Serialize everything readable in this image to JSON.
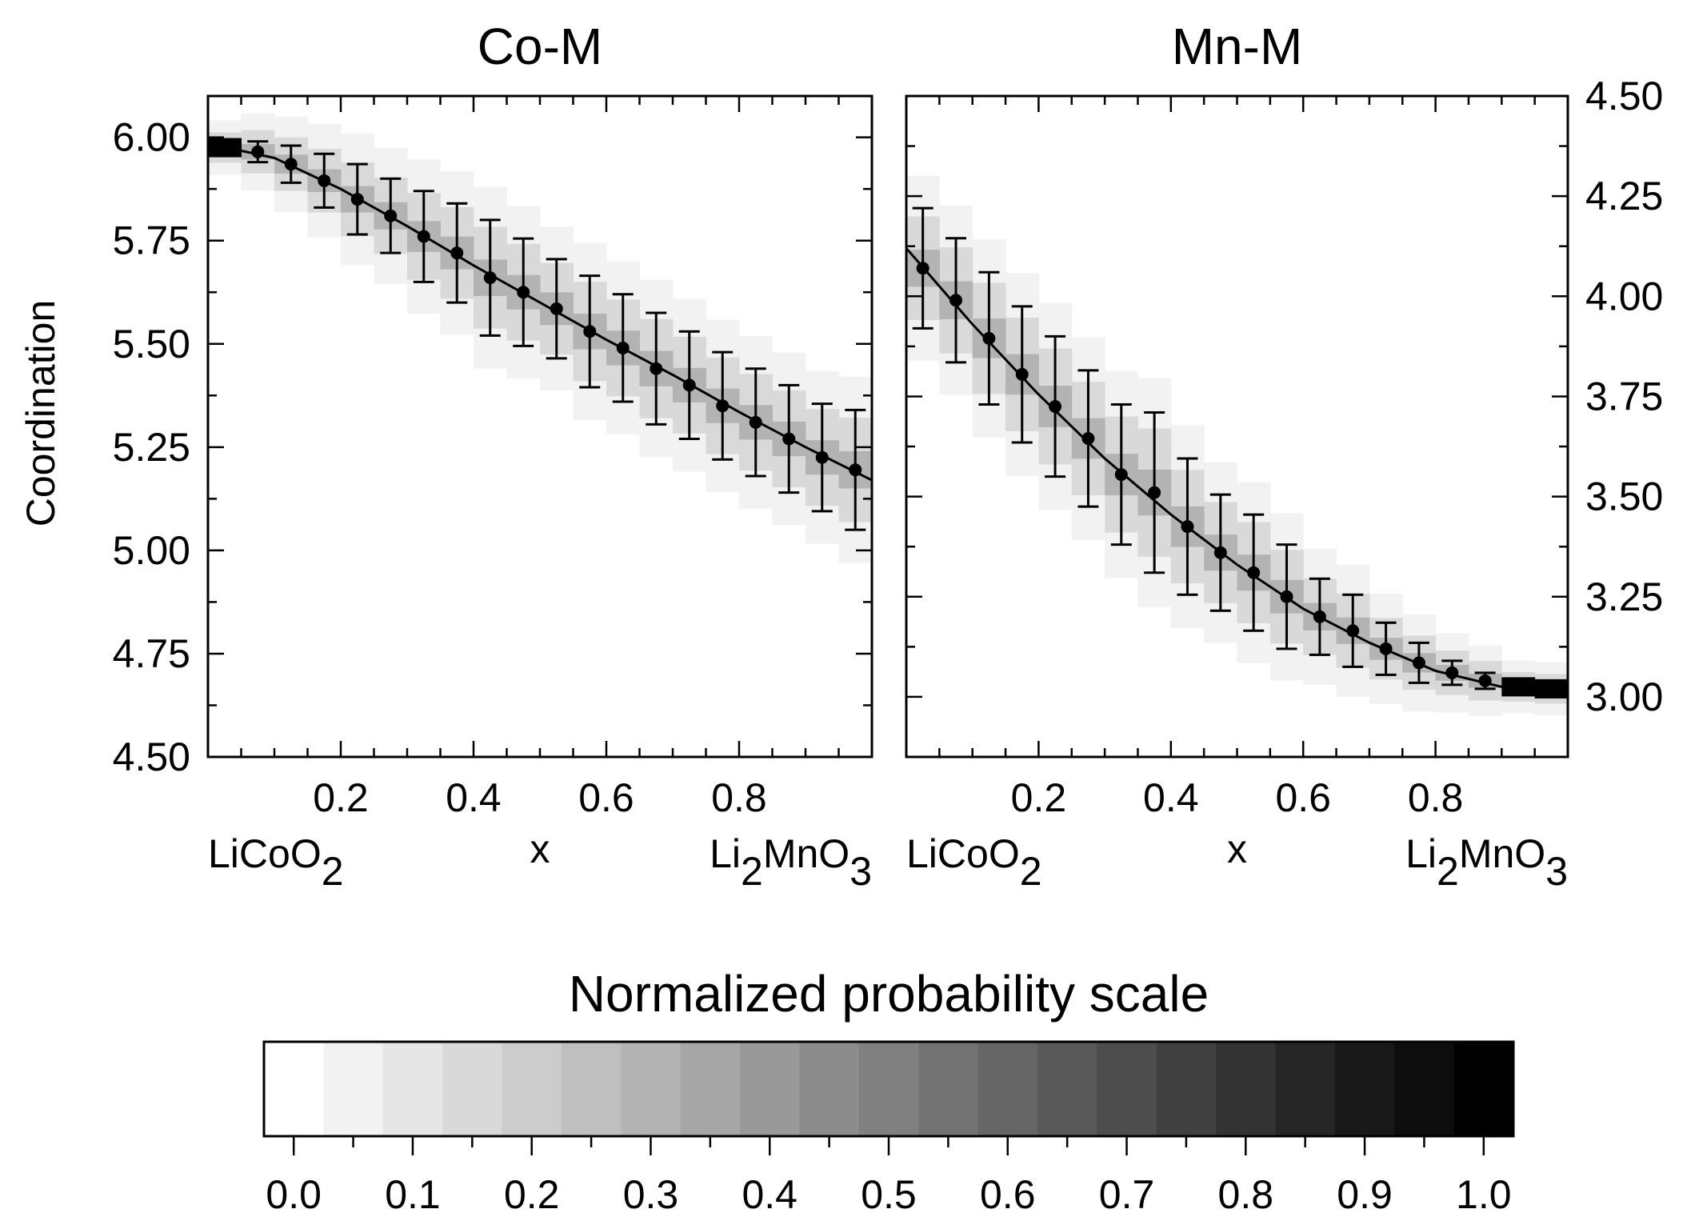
{
  "chart_data": [
    {
      "type": "scatter",
      "title": "Co-M",
      "ylabel": "Coordination",
      "xlim": [
        0,
        1
      ],
      "ylim": [
        4.5,
        6.1
      ],
      "x_ticks": [
        "0.2",
        "0.4",
        "0.6",
        "0.8"
      ],
      "x_tick_values": [
        0.2,
        0.4,
        0.6,
        0.8
      ],
      "x_end_labels": {
        "left": [
          "LiCoO",
          "2"
        ],
        "center": "x",
        "right": [
          "Li",
          "2",
          "MnO",
          "3"
        ]
      },
      "y_ticks": [
        "4.50",
        "4.75",
        "5.00",
        "5.25",
        "5.50",
        "5.75",
        "6.00"
      ],
      "y_tick_values": [
        4.5,
        4.75,
        5.0,
        5.25,
        5.5,
        5.75,
        6.0
      ],
      "y_axis_side": "left",
      "x": [
        0.025,
        0.075,
        0.125,
        0.175,
        0.225,
        0.275,
        0.325,
        0.375,
        0.425,
        0.475,
        0.525,
        0.575,
        0.625,
        0.675,
        0.725,
        0.775,
        0.825,
        0.875,
        0.925,
        0.975
      ],
      "y": [
        5.975,
        5.965,
        5.935,
        5.895,
        5.85,
        5.81,
        5.76,
        5.72,
        5.66,
        5.625,
        5.585,
        5.53,
        5.49,
        5.44,
        5.4,
        5.35,
        5.31,
        5.27,
        5.225,
        5.195
      ],
      "yerr": [
        0.0,
        0.025,
        0.045,
        0.065,
        0.085,
        0.09,
        0.11,
        0.12,
        0.14,
        0.13,
        0.12,
        0.135,
        0.13,
        0.135,
        0.13,
        0.13,
        0.13,
        0.13,
        0.13,
        0.145
      ],
      "fit_curve": {
        "x": [
          0.0,
          0.1,
          0.2,
          0.3,
          0.4,
          0.5,
          0.6,
          0.7,
          0.8,
          0.9,
          1.0
        ],
        "y": [
          5.985,
          5.95,
          5.875,
          5.785,
          5.69,
          5.6,
          5.51,
          5.425,
          5.335,
          5.25,
          5.17
        ]
      },
      "density_bands": [
        {
          "spread": 0.5,
          "level": 0.05
        },
        {
          "spread": 0.28,
          "level": 0.15
        },
        {
          "spread": 0.1,
          "level": 0.3
        }
      ]
    },
    {
      "type": "scatter",
      "title": "Mn-M",
      "xlim": [
        0,
        1
      ],
      "ylim": [
        2.85,
        4.5
      ],
      "x_ticks": [
        "0.2",
        "0.4",
        "0.6",
        "0.8"
      ],
      "x_tick_values": [
        0.2,
        0.4,
        0.6,
        0.8
      ],
      "x_end_labels": {
        "left": [
          "LiCoO",
          "2"
        ],
        "center": "x",
        "right": [
          "Li",
          "2",
          "MnO",
          "3"
        ]
      },
      "y_ticks": [
        "3.00",
        "3.25",
        "3.50",
        "3.75",
        "4.00",
        "4.25",
        "4.50"
      ],
      "y_tick_values": [
        3.0,
        3.25,
        3.5,
        3.75,
        4.0,
        4.25,
        4.5
      ],
      "y_axis_side": "right",
      "x": [
        0.025,
        0.075,
        0.125,
        0.175,
        0.225,
        0.275,
        0.325,
        0.375,
        0.425,
        0.475,
        0.525,
        0.575,
        0.625,
        0.675,
        0.725,
        0.775,
        0.825,
        0.875,
        0.925,
        0.975
      ],
      "y": [
        4.07,
        3.99,
        3.895,
        3.805,
        3.725,
        3.645,
        3.555,
        3.51,
        3.425,
        3.36,
        3.31,
        3.25,
        3.2,
        3.165,
        3.12,
        3.085,
        3.06,
        3.04,
        3.025,
        3.02
      ],
      "yerr": [
        0.15,
        0.155,
        0.165,
        0.17,
        0.175,
        0.17,
        0.175,
        0.2,
        0.17,
        0.145,
        0.145,
        0.13,
        0.095,
        0.09,
        0.065,
        0.05,
        0.03,
        0.02,
        0.0,
        0.0
      ],
      "fit_curve": {
        "x": [
          0.0,
          0.1,
          0.2,
          0.3,
          0.4,
          0.5,
          0.6,
          0.7,
          0.8,
          0.9,
          1.0
        ],
        "y": [
          4.12,
          3.93,
          3.755,
          3.595,
          3.455,
          3.33,
          3.22,
          3.135,
          3.065,
          3.025,
          3.015
        ]
      },
      "density_bands": [
        {
          "spread": 0.5,
          "level": 0.05
        },
        {
          "spread": 0.28,
          "level": 0.15
        },
        {
          "spread": 0.1,
          "level": 0.3
        }
      ]
    }
  ],
  "colorbar": {
    "title": "Normalized probability scale",
    "steps": 21,
    "tick_labels": [
      "0.0",
      "0.1",
      "0.2",
      "0.3",
      "0.4",
      "0.5",
      "0.6",
      "0.7",
      "0.8",
      "0.9",
      "1.0"
    ],
    "tick_values": [
      0.0,
      0.1,
      0.2,
      0.3,
      0.4,
      0.5,
      0.6,
      0.7,
      0.8,
      0.9,
      1.0
    ]
  }
}
